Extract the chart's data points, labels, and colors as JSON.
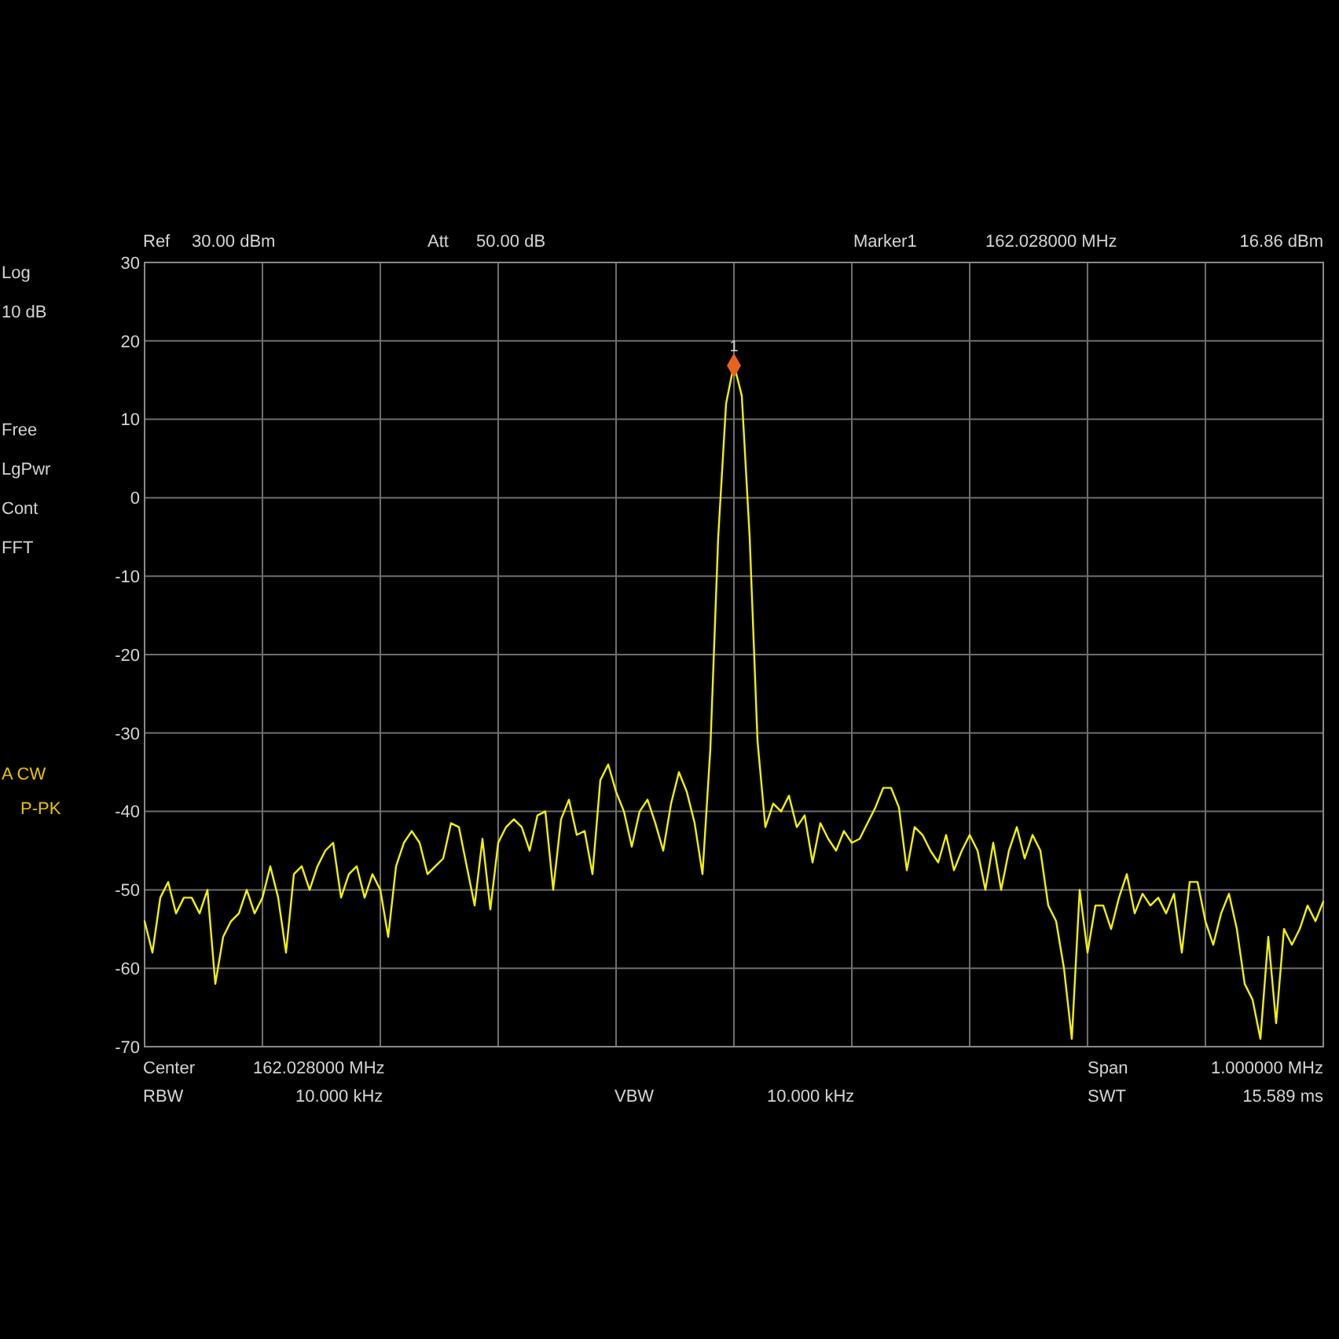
{
  "chart_data": {
    "type": "line",
    "categories": [
      null,
      null,
      null,
      null,
      null,
      null,
      null,
      null,
      null,
      null,
      null,
      null,
      null,
      null,
      null,
      null,
      null,
      null,
      null,
      null,
      null,
      null,
      null,
      null,
      null,
      null,
      null,
      null,
      null,
      null,
      null,
      null,
      null,
      null,
      null,
      null,
      null,
      null,
      null,
      null,
      null,
      null,
      null,
      null,
      null,
      null,
      null,
      null,
      null,
      null,
      null,
      null,
      null,
      null,
      null,
      null,
      null,
      null,
      null,
      null,
      null,
      null,
      null,
      null,
      null,
      null,
      null,
      null,
      null,
      null,
      null,
      null,
      null,
      null,
      null,
      null,
      null,
      null,
      null,
      null,
      null,
      null,
      null,
      null,
      null,
      null,
      null,
      null,
      null,
      null,
      null,
      null,
      null,
      null,
      null,
      null,
      null,
      null,
      null,
      null,
      null,
      null,
      null,
      null,
      null,
      null,
      null,
      null,
      null,
      null,
      null,
      null,
      null,
      null,
      null,
      null,
      null,
      null,
      null,
      null,
      null,
      null,
      null,
      null,
      null,
      null,
      null,
      null,
      null,
      null,
      null,
      null,
      null,
      null,
      null,
      null,
      null,
      null,
      null,
      null,
      null,
      null,
      null,
      null,
      null,
      null,
      null,
      null,
      null,
      null,
      null
    ],
    "series": [
      {
        "color": "#f2f200",
        "values": [
          -54,
          -58,
          -51,
          -49,
          -53,
          -51,
          -51,
          -53,
          -50,
          -62,
          -56,
          -54,
          -53,
          -50,
          -53,
          -51,
          -47,
          -51,
          -58,
          -48,
          -47,
          -50,
          -47,
          -45,
          -44,
          -51,
          -48,
          -47,
          -51,
          -48,
          -50,
          -56,
          -47,
          -44,
          -42.5,
          -44,
          -48,
          -47,
          -46,
          -41.5,
          -42,
          -47,
          -52,
          -43.5,
          -52.5,
          -44,
          -42,
          -41,
          -42,
          -45,
          -40.5,
          -40,
          -50,
          -41,
          -38.5,
          -43,
          -42.5,
          -48,
          -36,
          -34,
          -37.5,
          -40,
          -44.5,
          -40,
          -38.5,
          -41.5,
          -45,
          -39,
          -35,
          -37.5,
          -41.5,
          -48,
          -32,
          -5,
          12,
          17,
          13,
          -5,
          -31,
          -42,
          -39,
          -40,
          -38,
          -42,
          -40.5,
          -46.5,
          -41.5,
          -43.5,
          -45,
          -42.5,
          -44,
          -43.5,
          -41.5,
          -39.5,
          -37,
          -37,
          -39.5,
          -47.5,
          -42,
          -43,
          -45,
          -46.5,
          -43,
          -47.5,
          -45,
          -43,
          -45,
          -50,
          -44,
          -50,
          -45,
          -42,
          -46,
          -43,
          -45,
          -52,
          -54,
          -60,
          -69,
          -50,
          -58,
          -52,
          -52,
          -55,
          -51,
          -48,
          -53,
          -50.5,
          -52,
          -51,
          -53,
          -50.5,
          -58,
          -49,
          -49,
          -54,
          -57,
          -53,
          -50.5,
          -55,
          -62,
          -64,
          -69,
          -56,
          -67,
          -55,
          -57,
          -55,
          -52,
          -54,
          -51.5
        ]
      },
      {
        "type": "scatter",
        "name": "1",
        "color": "#e8641e",
        "marker": "diamond",
        "values": [
          null,
          null,
          null,
          null,
          null,
          null,
          null,
          null,
          null,
          null,
          null,
          null,
          null,
          null,
          null,
          null,
          null,
          null,
          null,
          null,
          null,
          null,
          null,
          null,
          null,
          null,
          null,
          null,
          null,
          null,
          null,
          null,
          null,
          null,
          null,
          null,
          null,
          null,
          null,
          null,
          null,
          null,
          null,
          null,
          null,
          null,
          null,
          null,
          null,
          null,
          null,
          null,
          null,
          null,
          null,
          null,
          null,
          null,
          null,
          null,
          null,
          null,
          null,
          null,
          null,
          null,
          null,
          null,
          null,
          null,
          null,
          null,
          null,
          null,
          null,
          16.86,
          null,
          null,
          null,
          null,
          null,
          null,
          null,
          null,
          null,
          null,
          null,
          null,
          null,
          null,
          null,
          null,
          null,
          null,
          null,
          null,
          null,
          null,
          null,
          null,
          null,
          null,
          null,
          null,
          null,
          null,
          null,
          null,
          null,
          null,
          null,
          null,
          null,
          null,
          null,
          null,
          null,
          null,
          null,
          null,
          null,
          null,
          null,
          null,
          null,
          null,
          null,
          null,
          null,
          null,
          null,
          null,
          null,
          null,
          null,
          null,
          null,
          null,
          null,
          null,
          null,
          null,
          null,
          null,
          null,
          null,
          null,
          null,
          null,
          null,
          null
        ]
      }
    ],
    "ylim": [
      -70,
      30
    ],
    "yticks": [
      30,
      20,
      10,
      0,
      -10,
      -20,
      -30,
      -40,
      -50,
      -60,
      -70
    ],
    "grid": true,
    "annotations": [
      "Ref",
      "30.00 dBm",
      "Att",
      "50.00 dB",
      "Marker1",
      "162.028000 MHz",
      "16.86 dBm",
      "Log",
      "10 dB",
      "Free",
      "LgPwr",
      "Cont",
      "FFT",
      "A CW",
      "P-PK",
      "Center",
      "162.028000 MHz",
      "Span",
      "1.000000 MHz",
      "RBW",
      "10.000 kHz",
      "VBW",
      "10.000 kHz",
      "SWT",
      "15.589 ms"
    ]
  }
}
